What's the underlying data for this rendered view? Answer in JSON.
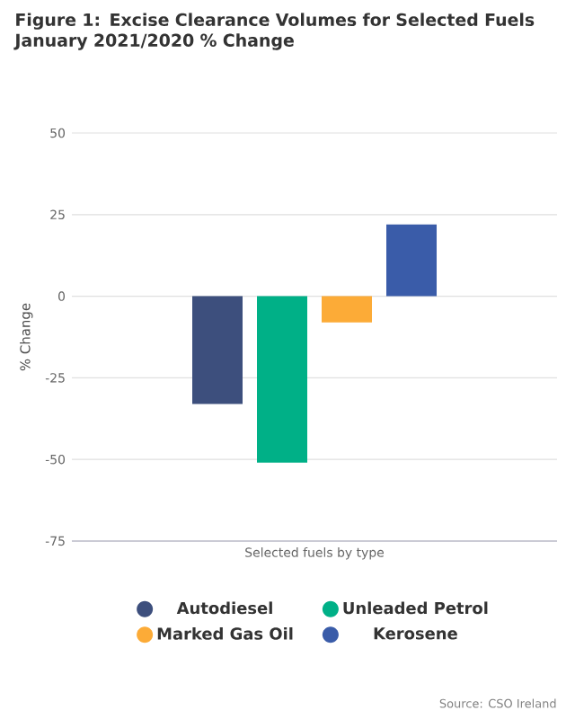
{
  "chart_data": {
    "type": "bar",
    "title": "Figure 1: Excise Clearance Volumes for Selected Fuels January 2021/2020 % Change",
    "ylabel": "% Change",
    "categories": [
      "Selected fuels by type"
    ],
    "series": [
      {
        "name": "Autodiesel",
        "color": "#3d4f7d",
        "values": [
          -33
        ]
      },
      {
        "name": "Unleaded Petrol",
        "color": "#00b087",
        "values": [
          -51
        ]
      },
      {
        "name": "Marked Gas Oil",
        "color": "#fcab37",
        "values": [
          -8
        ]
      },
      {
        "name": "Kerosene",
        "color": "#3a5ca9",
        "values": [
          22
        ]
      }
    ],
    "ylim": [
      -75,
      50
    ],
    "yticks": [
      50,
      25,
      0,
      -25,
      -50,
      -75
    ],
    "grid": "y",
    "legend": "bottom",
    "annotations": [
      "Source: CSO Ireland"
    ]
  }
}
